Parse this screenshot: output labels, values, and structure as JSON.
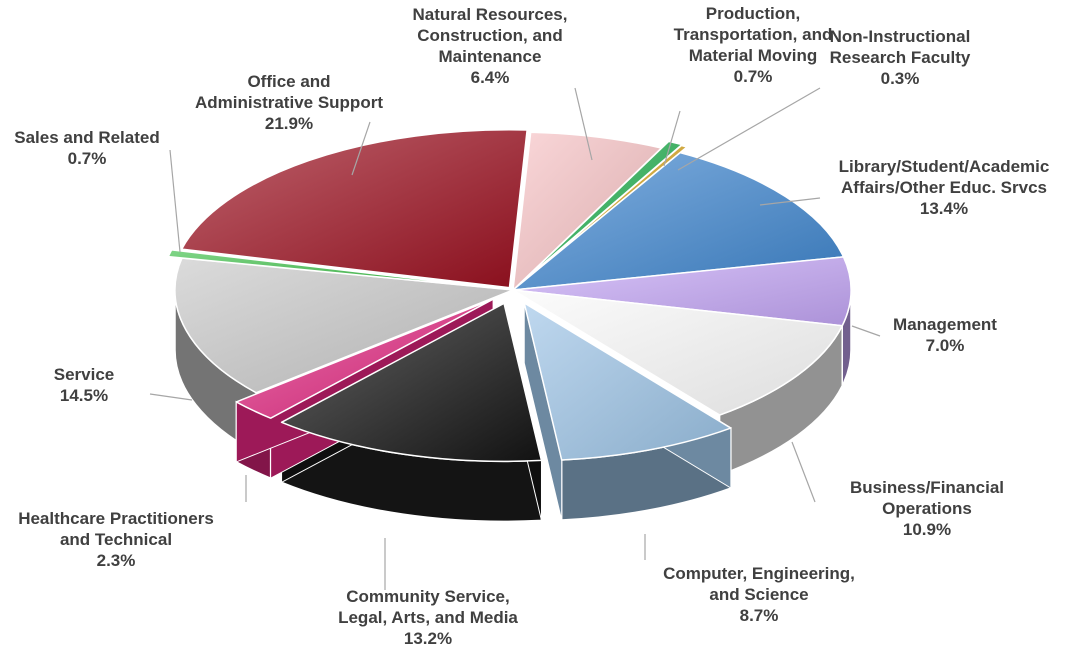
{
  "chart_data": {
    "type": "pie",
    "title": "",
    "legend": "none",
    "units": "%",
    "slices": [
      {
        "name": "Natural Resources, Construction, and Maintenance",
        "label_lines": [
          "Natural Resources,",
          "Construction, and",
          "Maintenance"
        ],
        "value": 6.4,
        "value_label": "6.4%",
        "color": "#f7c2c4"
      },
      {
        "name": "Production, Transportation, and Material Moving",
        "label_lines": [
          "Production,",
          "Transportation, and",
          "Material Moving"
        ],
        "value": 0.7,
        "value_label": "0.7%",
        "color": "#1fae4c"
      },
      {
        "name": "Non-Instructional Research Faculty",
        "label_lines": [
          "Non-Instructional",
          "Research Faculty"
        ],
        "value": 0.3,
        "value_label": "0.3%",
        "color": "#d7a21b"
      },
      {
        "name": "Library/Student/Academic Affairs/Other Educ. Srvcs",
        "label_lines": [
          "Library/Student/Academic",
          "Affairs/Other Educ. Srvcs"
        ],
        "value": 13.4,
        "value_label": "13.4%",
        "color": "#3f86cf"
      },
      {
        "name": "Management",
        "label_lines": [
          "Management"
        ],
        "value": 7.0,
        "value_label": "7.0%",
        "color": "#c4a6f5"
      },
      {
        "name": "Business/Financial Operations",
        "label_lines": [
          "Business/Financial",
          "Operations"
        ],
        "value": 10.9,
        "value_label": "10.9%",
        "color": "#fbfbfb"
      },
      {
        "name": "Computer, Engineering, and Science",
        "label_lines": [
          "Computer, Engineering,",
          "and Science"
        ],
        "value": 8.7,
        "value_label": "8.7%",
        "color": "#9cc3e6"
      },
      {
        "name": "Community Service, Legal, Arts, and Media",
        "label_lines": [
          "Community Service,",
          "Legal, Arts, and Media"
        ],
        "value": 13.2,
        "value_label": "13.2%",
        "color": "#141414"
      },
      {
        "name": "Healthcare Practitioners and Technical",
        "label_lines": [
          "Healthcare Practitioners",
          "and Technical"
        ],
        "value": 2.3,
        "value_label": "2.3%",
        "color": "#e0247e"
      },
      {
        "name": "Service",
        "label_lines": [
          "Service"
        ],
        "value": 14.5,
        "value_label": "14.5%",
        "color": "#c8c8c8"
      },
      {
        "name": "Sales and Related",
        "label_lines": [
          "Sales and Related"
        ],
        "value": 0.7,
        "value_label": "0.7%",
        "color": "#3bbf47"
      },
      {
        "name": "Office and Administrative Support",
        "label_lines": [
          "Office and",
          "Administrative Support"
        ],
        "value": 21.9,
        "value_label": "21.9%",
        "color": "#9c1020"
      }
    ]
  }
}
